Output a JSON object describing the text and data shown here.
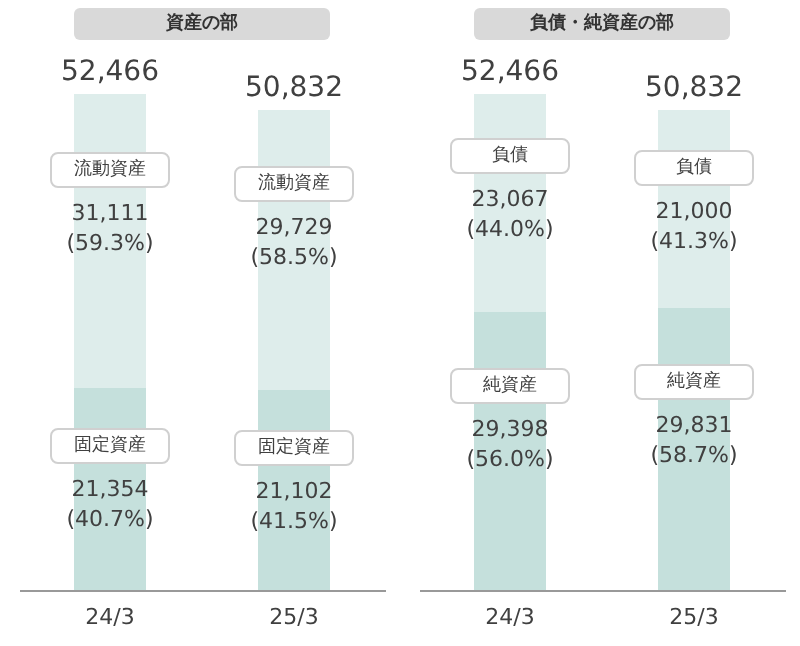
{
  "chart_data": [
    {
      "type": "bar",
      "title": "資産の部",
      "categories": [
        "24/3",
        "25/3"
      ],
      "stacked": true,
      "totals": [
        "52,466",
        "50,832"
      ],
      "series": [
        {
          "name": "固定資産",
          "color": "#c5e0dc",
          "values": [
            21354,
            21102
          ],
          "value_labels": [
            "21,354 (40.7%)",
            "21,102 (41.5%)"
          ]
        },
        {
          "name": "流動資産",
          "color": "#deedeb",
          "values": [
            31111,
            29729
          ],
          "value_labels": [
            "31,111 (59.3%)",
            "29,729 (58.5%)"
          ]
        }
      ]
    },
    {
      "type": "bar",
      "title": "負債・純資産の部",
      "categories": [
        "24/3",
        "25/3"
      ],
      "stacked": true,
      "totals": [
        "52,466",
        "50,832"
      ],
      "series": [
        {
          "name": "純資産",
          "color": "#c5e0dc",
          "values": [
            29398,
            29831
          ],
          "value_labels": [
            "29,398 (56.0%)",
            "29,831 (58.7%)"
          ]
        },
        {
          "name": "負債",
          "color": "#deedeb",
          "values": [
            23067,
            21000
          ],
          "value_labels": [
            "23,067 (44.0%)",
            "21,000 (41.3%)"
          ]
        }
      ]
    }
  ]
}
